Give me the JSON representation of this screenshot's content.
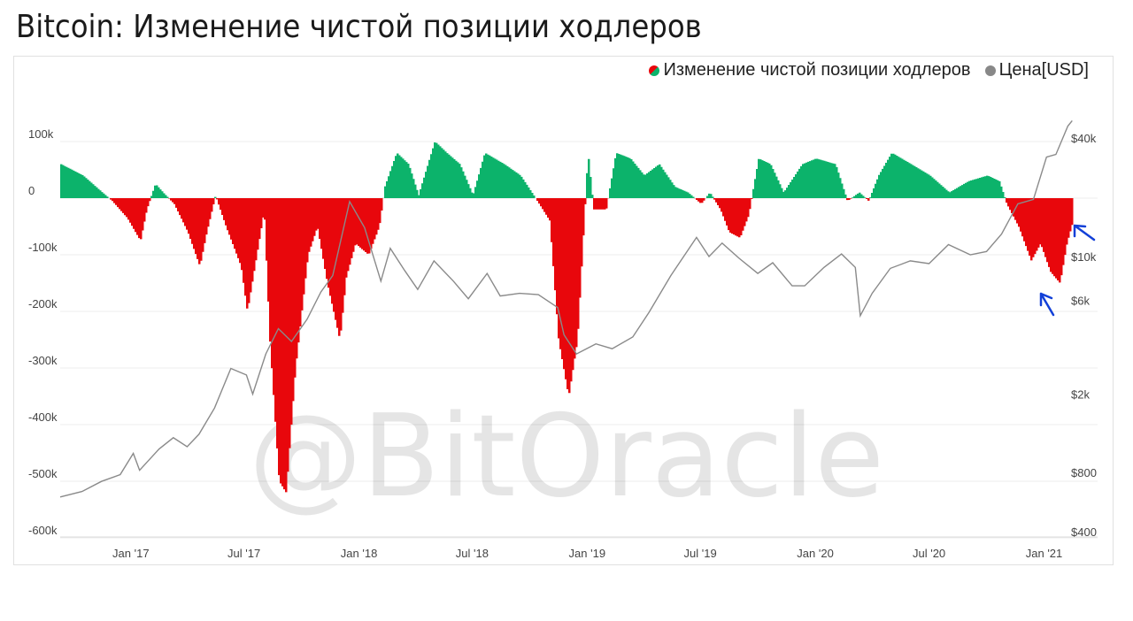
{
  "title": "Bitcoin: Изменение чистой позиции ходлеров",
  "watermark": "@BitOracle",
  "legend": {
    "position": "top-right",
    "series1": "Изменение чистой позиции ходлеров",
    "series2": "Цена[USD]"
  },
  "colors": {
    "positive": "#0cb36b",
    "negative": "#e8070c",
    "price": "#8a8a8a",
    "arrow": "#1240d8"
  },
  "chart_data": {
    "type": "area",
    "x_range": [
      "2016-09",
      "2021-02"
    ],
    "y_left": {
      "ticks": [
        100000,
        0,
        -100000,
        -200000,
        -300000,
        -400000,
        -500000,
        -600000
      ],
      "tick_labels": [
        "100k",
        "0",
        "-100k",
        "-200k",
        "-300k",
        "-400k",
        "-500k",
        "-600k"
      ],
      "range": [
        -600000,
        150000
      ]
    },
    "y_right": {
      "scale": "log",
      "tick_labels": [
        "$40k",
        "$10k",
        "$6k",
        "$2k",
        "$800",
        "$400"
      ],
      "ticks": [
        40000,
        10000,
        6000,
        2000,
        800,
        400
      ]
    },
    "x_tick_labels": [
      "Jan '17",
      "Jul '17",
      "Jan '18",
      "Jul '18",
      "Jan '19",
      "Jul '19",
      "Jan '20",
      "Jul '20",
      "Jan '21"
    ],
    "x_ticks": [
      "2017-01",
      "2017-07",
      "2018-01",
      "2018-07",
      "2019-01",
      "2019-07",
      "2020-01",
      "2020-07",
      "2021-01"
    ],
    "series": [
      {
        "name": "Изменение чистой позиции ходлеров",
        "points": [
          [
            "2016-09-10",
            60000
          ],
          [
            "2016-10-15",
            40000
          ],
          [
            "2016-11-15",
            10000
          ],
          [
            "2016-12-01",
            -5000
          ],
          [
            "2016-12-25",
            -35000
          ],
          [
            "2017-01-15",
            -75000
          ],
          [
            "2017-01-25",
            -20000
          ],
          [
            "2017-02-08",
            25000
          ],
          [
            "2017-02-20",
            10000
          ],
          [
            "2017-03-10",
            -10000
          ],
          [
            "2017-04-01",
            -60000
          ],
          [
            "2017-04-20",
            -120000
          ],
          [
            "2017-05-01",
            -60000
          ],
          [
            "2017-05-15",
            5000
          ],
          [
            "2017-06-01",
            -50000
          ],
          [
            "2017-06-25",
            -120000
          ],
          [
            "2017-07-05",
            -200000
          ],
          [
            "2017-07-20",
            -100000
          ],
          [
            "2017-08-01",
            -20000
          ],
          [
            "2017-08-10",
            -250000
          ],
          [
            "2017-08-25",
            -500000
          ],
          [
            "2017-09-05",
            -520000
          ],
          [
            "2017-09-20",
            -300000
          ],
          [
            "2017-10-10",
            -100000
          ],
          [
            "2017-10-25",
            -50000
          ],
          [
            "2017-11-10",
            -150000
          ],
          [
            "2017-11-30",
            -250000
          ],
          [
            "2017-12-10",
            -140000
          ],
          [
            "2017-12-25",
            -80000
          ],
          [
            "2018-01-15",
            -100000
          ],
          [
            "2018-02-01",
            -50000
          ],
          [
            "2018-02-10",
            20000
          ],
          [
            "2018-03-01",
            80000
          ],
          [
            "2018-03-20",
            60000
          ],
          [
            "2018-04-05",
            5000
          ],
          [
            "2018-05-01",
            100000
          ],
          [
            "2018-05-20",
            80000
          ],
          [
            "2018-06-10",
            60000
          ],
          [
            "2018-07-01",
            5000
          ],
          [
            "2018-07-20",
            80000
          ],
          [
            "2018-08-20",
            60000
          ],
          [
            "2018-09-15",
            40000
          ],
          [
            "2018-10-15",
            -10000
          ],
          [
            "2018-11-01",
            -40000
          ],
          [
            "2018-11-15",
            -250000
          ],
          [
            "2018-12-01",
            -350000
          ],
          [
            "2018-12-15",
            -250000
          ],
          [
            "2019-01-01",
            80000
          ],
          [
            "2019-01-10",
            -20000
          ],
          [
            "2019-01-30",
            -20000
          ],
          [
            "2019-02-15",
            80000
          ],
          [
            "2019-03-10",
            70000
          ],
          [
            "2019-04-01",
            40000
          ],
          [
            "2019-04-25",
            60000
          ],
          [
            "2019-05-20",
            20000
          ],
          [
            "2019-06-10",
            10000
          ],
          [
            "2019-07-01",
            -10000
          ],
          [
            "2019-07-15",
            10000
          ],
          [
            "2019-08-01",
            -20000
          ],
          [
            "2019-08-15",
            -60000
          ],
          [
            "2019-09-01",
            -70000
          ],
          [
            "2019-09-15",
            -30000
          ],
          [
            "2019-10-01",
            70000
          ],
          [
            "2019-10-20",
            60000
          ],
          [
            "2019-11-10",
            10000
          ],
          [
            "2019-12-10",
            60000
          ],
          [
            "2020-01-01",
            70000
          ],
          [
            "2020-02-01",
            60000
          ],
          [
            "2020-02-20",
            -5000
          ],
          [
            "2020-03-10",
            10000
          ],
          [
            "2020-03-25",
            -5000
          ],
          [
            "2020-04-10",
            40000
          ],
          [
            "2020-05-01",
            80000
          ],
          [
            "2020-06-01",
            60000
          ],
          [
            "2020-07-01",
            40000
          ],
          [
            "2020-08-01",
            10000
          ],
          [
            "2020-09-01",
            30000
          ],
          [
            "2020-10-01",
            40000
          ],
          [
            "2020-10-20",
            30000
          ],
          [
            "2020-11-01",
            -10000
          ],
          [
            "2020-11-20",
            -50000
          ],
          [
            "2020-12-10",
            -110000
          ],
          [
            "2020-12-25",
            -80000
          ],
          [
            "2021-01-10",
            -130000
          ],
          [
            "2021-01-25",
            -150000
          ],
          [
            "2021-02-05",
            -80000
          ],
          [
            "2021-02-15",
            -40000
          ]
        ]
      },
      {
        "name": "Цена[USD]",
        "points": [
          [
            "2016-09-10",
            600
          ],
          [
            "2016-10-15",
            640
          ],
          [
            "2016-11-15",
            720
          ],
          [
            "2016-12-15",
            780
          ],
          [
            "2017-01-05",
            1000
          ],
          [
            "2017-01-15",
            820
          ],
          [
            "2017-02-15",
            1050
          ],
          [
            "2017-03-10",
            1200
          ],
          [
            "2017-04-01",
            1080
          ],
          [
            "2017-04-20",
            1250
          ],
          [
            "2017-05-15",
            1700
          ],
          [
            "2017-06-10",
            2700
          ],
          [
            "2017-07-05",
            2500
          ],
          [
            "2017-07-15",
            2000
          ],
          [
            "2017-08-05",
            3200
          ],
          [
            "2017-08-25",
            4300
          ],
          [
            "2017-09-15",
            3700
          ],
          [
            "2017-10-10",
            4800
          ],
          [
            "2017-11-01",
            6600
          ],
          [
            "2017-11-20",
            8000
          ],
          [
            "2017-12-17",
            19000
          ],
          [
            "2018-01-10",
            14000
          ],
          [
            "2018-02-05",
            7500
          ],
          [
            "2018-02-20",
            11000
          ],
          [
            "2018-03-15",
            8500
          ],
          [
            "2018-04-05",
            6800
          ],
          [
            "2018-05-01",
            9500
          ],
          [
            "2018-06-01",
            7500
          ],
          [
            "2018-06-25",
            6100
          ],
          [
            "2018-07-25",
            8200
          ],
          [
            "2018-08-15",
            6300
          ],
          [
            "2018-09-15",
            6500
          ],
          [
            "2018-10-15",
            6400
          ],
          [
            "2018-11-15",
            5500
          ],
          [
            "2018-11-25",
            4000
          ],
          [
            "2018-12-15",
            3200
          ],
          [
            "2019-01-15",
            3600
          ],
          [
            "2019-02-10",
            3400
          ],
          [
            "2019-03-15",
            3900
          ],
          [
            "2019-04-10",
            5200
          ],
          [
            "2019-05-15",
            8000
          ],
          [
            "2019-06-25",
            12500
          ],
          [
            "2019-07-15",
            10000
          ],
          [
            "2019-08-05",
            11700
          ],
          [
            "2019-09-01",
            9800
          ],
          [
            "2019-10-01",
            8200
          ],
          [
            "2019-10-25",
            9300
          ],
          [
            "2019-11-25",
            7100
          ],
          [
            "2019-12-15",
            7100
          ],
          [
            "2020-01-15",
            8800
          ],
          [
            "2020-02-12",
            10300
          ],
          [
            "2020-03-05",
            8800
          ],
          [
            "2020-03-13",
            5000
          ],
          [
            "2020-04-01",
            6500
          ],
          [
            "2020-04-30",
            8700
          ],
          [
            "2020-06-01",
            9500
          ],
          [
            "2020-07-01",
            9200
          ],
          [
            "2020-08-01",
            11500
          ],
          [
            "2020-09-05",
            10200
          ],
          [
            "2020-10-01",
            10600
          ],
          [
            "2020-10-25",
            13000
          ],
          [
            "2020-11-20",
            18500
          ],
          [
            "2020-12-15",
            19500
          ],
          [
            "2021-01-05",
            32000
          ],
          [
            "2021-01-20",
            33000
          ],
          [
            "2021-02-08",
            46000
          ],
          [
            "2021-02-15",
            49000
          ]
        ]
      }
    ],
    "annotations": [
      "arrow pointing at end of red area (upper)",
      "arrow pointing at red trough (lower)"
    ],
    "grid": true
  }
}
